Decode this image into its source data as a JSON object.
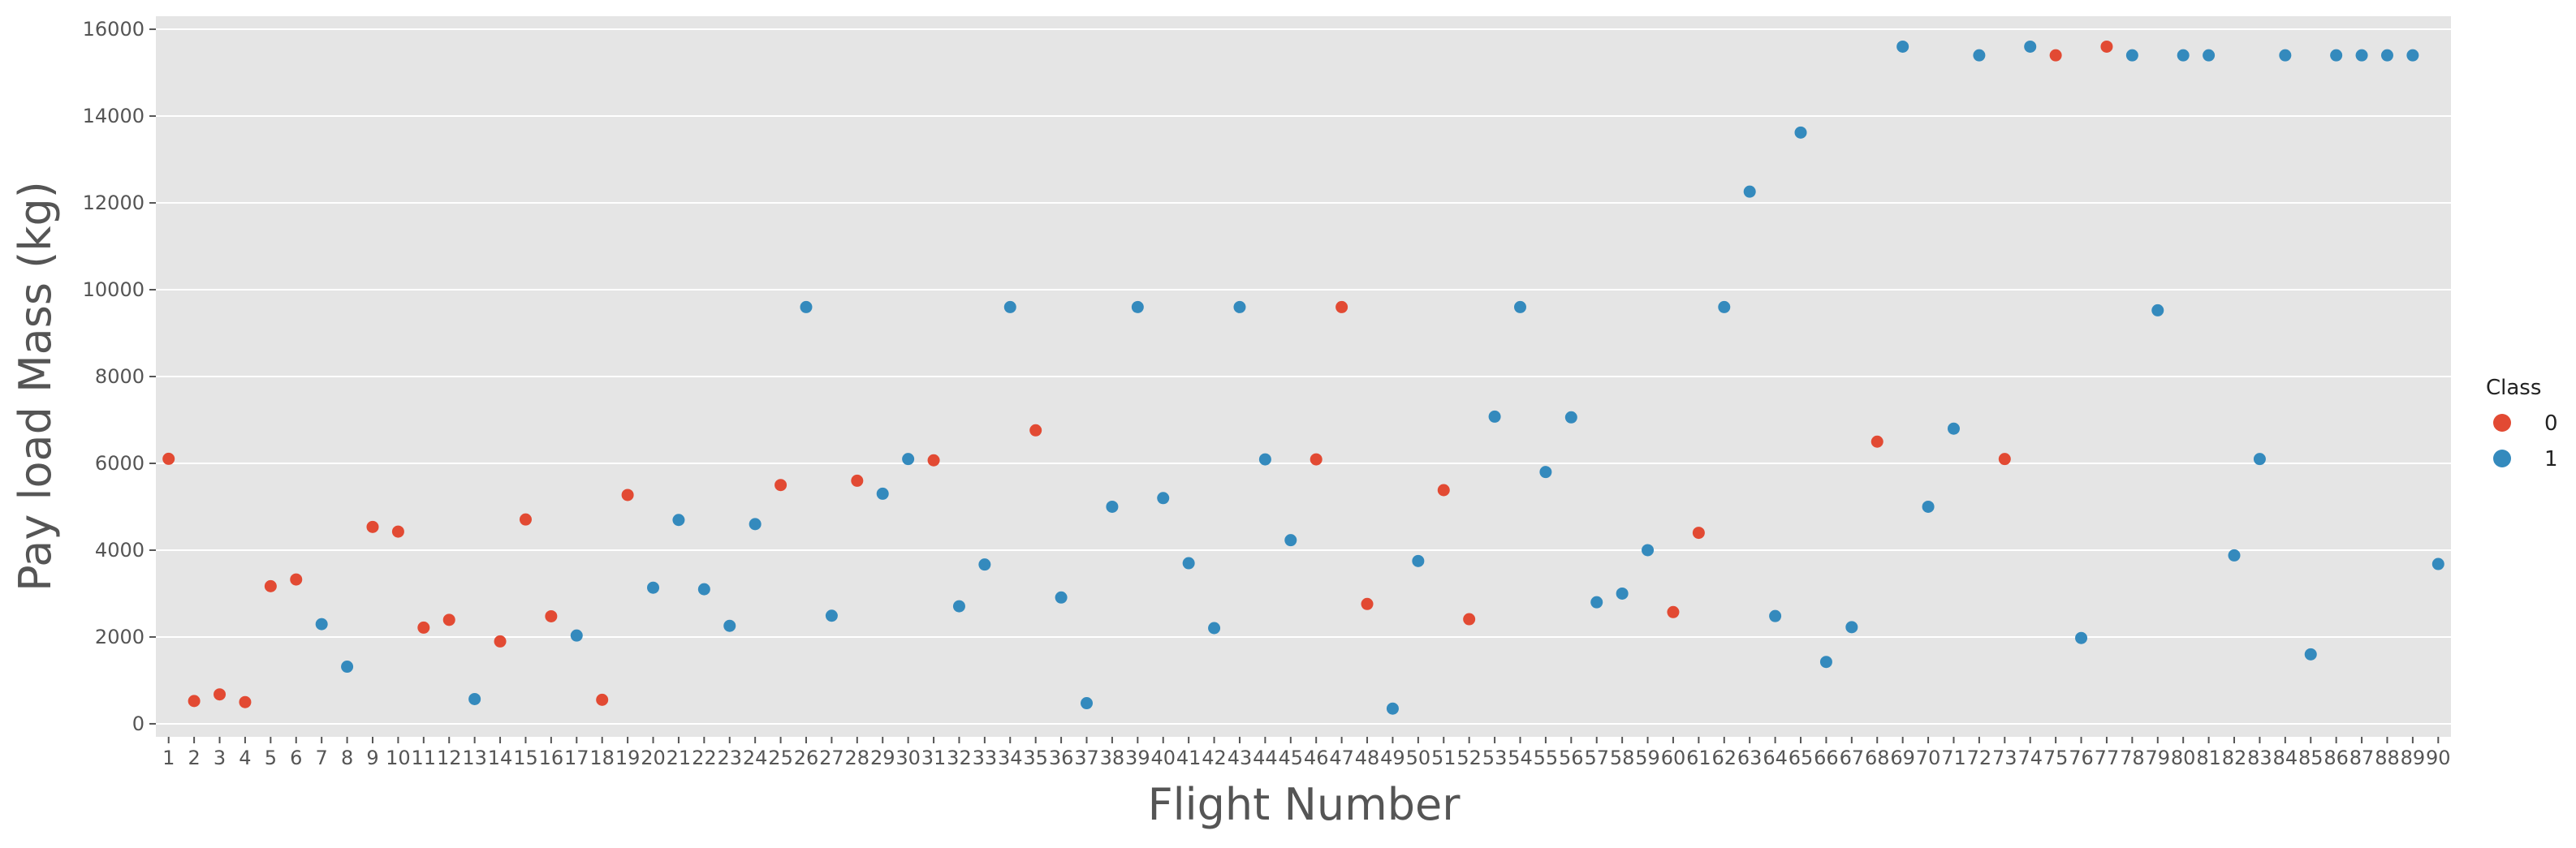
{
  "chart_data": {
    "type": "scatter",
    "xlabel": "Flight Number",
    "ylabel": "Pay load Mass (kg)",
    "ylim": [
      -300,
      16300
    ],
    "yticks": [
      0,
      2000,
      4000,
      6000,
      8000,
      10000,
      12000,
      14000,
      16000
    ],
    "grid": true,
    "legend": {
      "title": "Class",
      "placement": "right",
      "entries": [
        {
          "label": "0",
          "color": "#e24a33"
        },
        {
          "label": "1",
          "color": "#348abd"
        }
      ]
    },
    "points": [
      {
        "x": 1,
        "y": 6104,
        "class": 0
      },
      {
        "x": 2,
        "y": 525,
        "class": 0
      },
      {
        "x": 3,
        "y": 677,
        "class": 0
      },
      {
        "x": 4,
        "y": 500,
        "class": 0
      },
      {
        "x": 5,
        "y": 3170,
        "class": 0
      },
      {
        "x": 6,
        "y": 3325,
        "class": 0
      },
      {
        "x": 7,
        "y": 2296,
        "class": 1
      },
      {
        "x": 8,
        "y": 1316,
        "class": 1
      },
      {
        "x": 9,
        "y": 4535,
        "class": 0
      },
      {
        "x": 10,
        "y": 4428,
        "class": 0
      },
      {
        "x": 11,
        "y": 2216,
        "class": 0
      },
      {
        "x": 12,
        "y": 2395,
        "class": 0
      },
      {
        "x": 13,
        "y": 570,
        "class": 1
      },
      {
        "x": 14,
        "y": 1898,
        "class": 0
      },
      {
        "x": 15,
        "y": 4707,
        "class": 0
      },
      {
        "x": 16,
        "y": 2477,
        "class": 0
      },
      {
        "x": 17,
        "y": 2034,
        "class": 1
      },
      {
        "x": 18,
        "y": 553,
        "class": 0
      },
      {
        "x": 19,
        "y": 5271,
        "class": 0
      },
      {
        "x": 20,
        "y": 3136,
        "class": 1
      },
      {
        "x": 21,
        "y": 4696,
        "class": 1
      },
      {
        "x": 22,
        "y": 3100,
        "class": 1
      },
      {
        "x": 23,
        "y": 2257,
        "class": 1
      },
      {
        "x": 24,
        "y": 4600,
        "class": 1
      },
      {
        "x": 25,
        "y": 5500,
        "class": 0
      },
      {
        "x": 26,
        "y": 9600,
        "class": 1
      },
      {
        "x": 27,
        "y": 2490,
        "class": 1
      },
      {
        "x": 28,
        "y": 5600,
        "class": 0
      },
      {
        "x": 29,
        "y": 5300,
        "class": 1
      },
      {
        "x": 30,
        "y": 6100,
        "class": 1
      },
      {
        "x": 31,
        "y": 6070,
        "class": 0
      },
      {
        "x": 32,
        "y": 2708,
        "class": 1
      },
      {
        "x": 33,
        "y": 3669,
        "class": 1
      },
      {
        "x": 34,
        "y": 9600,
        "class": 1
      },
      {
        "x": 35,
        "y": 6761,
        "class": 0
      },
      {
        "x": 36,
        "y": 2910,
        "class": 1
      },
      {
        "x": 37,
        "y": 475,
        "class": 1
      },
      {
        "x": 38,
        "y": 5000,
        "class": 1
      },
      {
        "x": 39,
        "y": 9600,
        "class": 1
      },
      {
        "x": 40,
        "y": 5200,
        "class": 1
      },
      {
        "x": 41,
        "y": 3700,
        "class": 1
      },
      {
        "x": 42,
        "y": 2205,
        "class": 1
      },
      {
        "x": 43,
        "y": 9600,
        "class": 1
      },
      {
        "x": 44,
        "y": 6092,
        "class": 1
      },
      {
        "x": 45,
        "y": 4230,
        "class": 1
      },
      {
        "x": 46,
        "y": 6092,
        "class": 0
      },
      {
        "x": 47,
        "y": 9600,
        "class": 0
      },
      {
        "x": 48,
        "y": 2760,
        "class": 0
      },
      {
        "x": 49,
        "y": 350,
        "class": 1
      },
      {
        "x": 50,
        "y": 3750,
        "class": 1
      },
      {
        "x": 51,
        "y": 5383,
        "class": 0
      },
      {
        "x": 52,
        "y": 2410,
        "class": 0
      },
      {
        "x": 53,
        "y": 7076,
        "class": 1
      },
      {
        "x": 54,
        "y": 9600,
        "class": 1
      },
      {
        "x": 55,
        "y": 5800,
        "class": 1
      },
      {
        "x": 56,
        "y": 7060,
        "class": 1
      },
      {
        "x": 57,
        "y": 2800,
        "class": 1
      },
      {
        "x": 58,
        "y": 3000,
        "class": 1
      },
      {
        "x": 59,
        "y": 4000,
        "class": 1
      },
      {
        "x": 60,
        "y": 2573,
        "class": 0
      },
      {
        "x": 61,
        "y": 4400,
        "class": 0
      },
      {
        "x": 62,
        "y": 9600,
        "class": 1
      },
      {
        "x": 63,
        "y": 12259,
        "class": 1
      },
      {
        "x": 64,
        "y": 2482,
        "class": 1
      },
      {
        "x": 65,
        "y": 13620,
        "class": 1
      },
      {
        "x": 66,
        "y": 1425,
        "class": 1
      },
      {
        "x": 67,
        "y": 2227,
        "class": 1
      },
      {
        "x": 68,
        "y": 6500,
        "class": 0
      },
      {
        "x": 69,
        "y": 15600,
        "class": 1
      },
      {
        "x": 70,
        "y": 5000,
        "class": 1
      },
      {
        "x": 71,
        "y": 6800,
        "class": 1
      },
      {
        "x": 72,
        "y": 15400,
        "class": 1
      },
      {
        "x": 73,
        "y": 6100,
        "class": 0
      },
      {
        "x": 74,
        "y": 15600,
        "class": 1
      },
      {
        "x": 75,
        "y": 15400,
        "class": 0
      },
      {
        "x": 76,
        "y": 1977,
        "class": 1
      },
      {
        "x": 77,
        "y": 15600,
        "class": 0
      },
      {
        "x": 78,
        "y": 15400,
        "class": 1
      },
      {
        "x": 79,
        "y": 9525,
        "class": 1
      },
      {
        "x": 80,
        "y": 15400,
        "class": 1
      },
      {
        "x": 81,
        "y": 15400,
        "class": 1
      },
      {
        "x": 82,
        "y": 3880,
        "class": 1
      },
      {
        "x": 83,
        "y": 6100,
        "class": 1
      },
      {
        "x": 84,
        "y": 15400,
        "class": 1
      },
      {
        "x": 85,
        "y": 1600,
        "class": 1
      },
      {
        "x": 86,
        "y": 15400,
        "class": 1
      },
      {
        "x": 87,
        "y": 15400,
        "class": 1
      },
      {
        "x": 88,
        "y": 15400,
        "class": 1
      },
      {
        "x": 89,
        "y": 15400,
        "class": 1
      },
      {
        "x": 90,
        "y": 3681,
        "class": 1
      }
    ]
  }
}
